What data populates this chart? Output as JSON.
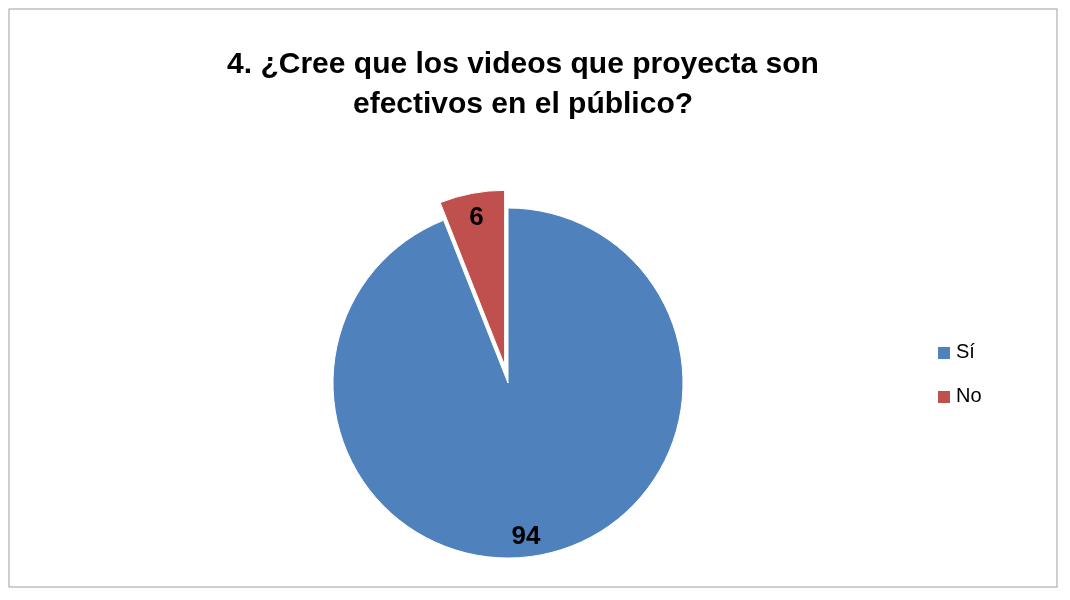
{
  "chart_data": {
    "type": "pie",
    "title": "4. ¿Cree que los videos que proyecta son efectivos en el público?",
    "categories": [
      "Sí",
      "No"
    ],
    "values": [
      94,
      6
    ],
    "colors": [
      "#4f81bd",
      "#c0504d"
    ],
    "data_labels": true,
    "legend": "right"
  }
}
